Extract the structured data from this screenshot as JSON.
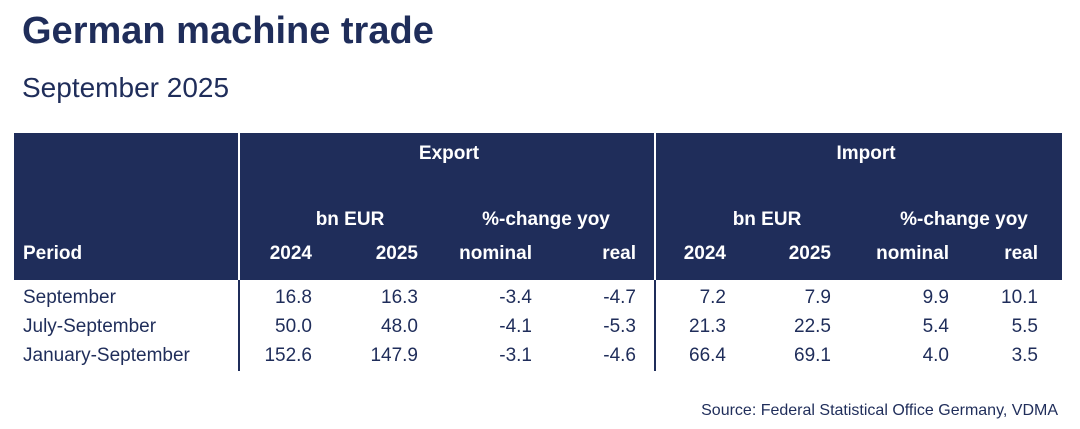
{
  "title": "German machine trade",
  "subtitle": "September 2025",
  "source": "Source: Federal Statistical Office Germany, VDMA",
  "colors": {
    "header_bg": "#1f2d5a",
    "header_text": "#ffffff",
    "body_text": "#1f2d5a"
  },
  "chart_data": {
    "type": "table",
    "groups": [
      "Export",
      "Import"
    ],
    "subgroups": [
      "bn EUR",
      "%-change yoy"
    ],
    "period_label": "Period",
    "columns": [
      "2024",
      "2025",
      "nominal",
      "real",
      "2024",
      "2025",
      "nominal",
      "real"
    ],
    "rows": [
      {
        "period": "September",
        "values": [
          "16.8",
          "16.3",
          "-3.4",
          "-4.7",
          "7.2",
          "7.9",
          "9.9",
          "10.1"
        ]
      },
      {
        "period": "July-September",
        "values": [
          "50.0",
          "48.0",
          "-4.1",
          "-5.3",
          "21.3",
          "22.5",
          "5.4",
          "5.5"
        ]
      },
      {
        "period": "January-September",
        "values": [
          "152.6",
          "147.9",
          "-3.1",
          "-4.6",
          "66.4",
          "69.1",
          "4.0",
          "3.5"
        ]
      }
    ]
  }
}
